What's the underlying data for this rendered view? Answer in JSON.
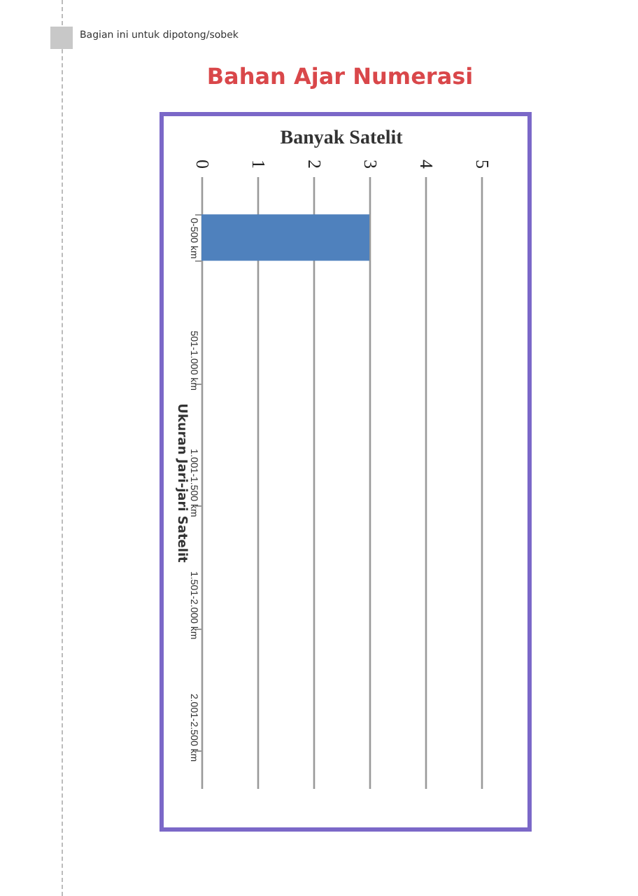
{
  "chart_data": {
    "type": "bar",
    "orientation": "horizontal",
    "title": "Banyak Satelit",
    "ylabel": "Ukuran Jari-jari Satelit",
    "annotations": [
      "Bagian ini untuk dipotong/sobek",
      "Bahan Ajar Numerasi"
    ],
    "categories": [
      "0-500 km",
      "501-1.000 km",
      "1.001-1.500 km",
      "1.501-2.000 km",
      "2.001-2.500 km"
    ],
    "values": [
      3,
      0,
      0,
      0,
      0
    ],
    "color": "#4f81bd",
    "xlim": [
      0,
      5
    ],
    "xticks": [
      0,
      1,
      2,
      3,
      4,
      5
    ],
    "grid": "x"
  }
}
